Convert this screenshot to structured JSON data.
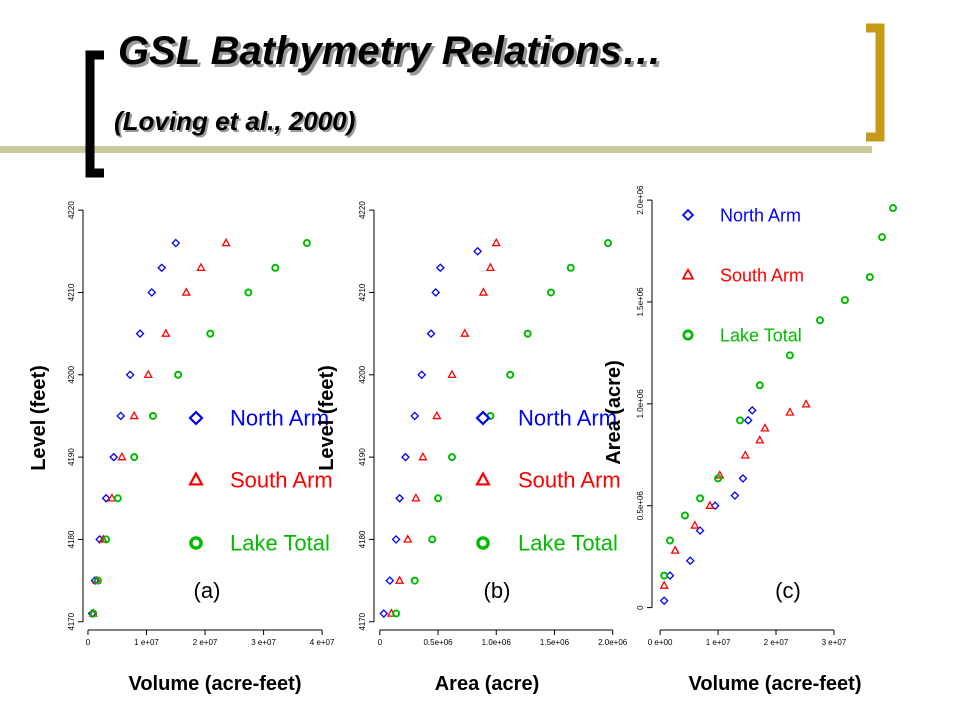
{
  "header": {
    "title": "GSL Bathymetry Relations…",
    "subtitle": "(Loving et al., 2000)"
  },
  "chart_data": [
    {
      "type": "scatter",
      "panel_label": "(a)",
      "x_label": "Volume (acre-feet)",
      "y_label": "Level (feet)",
      "xlim": [
        -850000,
        42200000
      ],
      "ylim": [
        4169,
        4220.5
      ],
      "xticks": [
        0,
        {
          "value": 10000000,
          "label": "1 e+07"
        },
        {
          "value": 20000000,
          "label": "2 e+07"
        },
        {
          "value": 30000000,
          "label": "3 e+07"
        },
        {
          "value": 40000000,
          "label": "4 e+07"
        }
      ],
      "yticks": [
        4170,
        4180,
        4190,
        4200,
        4210,
        4220
      ],
      "series": [
        {
          "name": "North Arm",
          "color": "#0000ff",
          "marker": "diamond",
          "x": [
            700000,
            1200000,
            2000000,
            3100000,
            4400000,
            5600000,
            7200000,
            8900000,
            10900000,
            12600000,
            15000000
          ],
          "values": [
            4171,
            4175,
            4180,
            4185,
            4190,
            4195,
            4200,
            4205,
            4210,
            4213,
            4216
          ]
        },
        {
          "name": "South Arm",
          "color": "#ff0000",
          "marker": "triangle",
          "x": [
            900000,
            1500000,
            2600000,
            4100000,
            5800000,
            7900000,
            10300000,
            13300000,
            16800000,
            19300000,
            23600000
          ],
          "values": [
            4171,
            4175,
            4180,
            4185,
            4190,
            4195,
            4200,
            4205,
            4210,
            4213,
            4216
          ]
        },
        {
          "name": "Lake Total",
          "color": "#00bb00",
          "marker": "circle",
          "x": [
            900000,
            1700000,
            3100000,
            5100000,
            7900000,
            11100000,
            15400000,
            20900000,
            27400000,
            32000000,
            37400000
          ],
          "values": [
            4171,
            4175,
            4180,
            4185,
            4190,
            4195,
            4200,
            4205,
            4210,
            4213,
            4216
          ]
        }
      ]
    },
    {
      "type": "scatter",
      "panel_label": "(b)",
      "x_label": "Area (acre)",
      "y_label": "Level (feet)",
      "xlim": [
        -50000,
        2080000
      ],
      "ylim": [
        4169,
        4220.5
      ],
      "xticks": [
        0,
        {
          "value": 500000,
          "label": "0.5e+06"
        },
        {
          "value": 1000000,
          "label": "1.0e+06"
        },
        {
          "value": 1500000,
          "label": "1.5e+06"
        },
        {
          "value": 2000000,
          "label": "2.0e+06"
        }
      ],
      "yticks": [
        4170,
        4180,
        4190,
        4200,
        4210,
        4220
      ],
      "series": [
        {
          "name": "North Arm",
          "color": "#0000ff",
          "marker": "diamond",
          "x": [
            34000,
            86000,
            140000,
            170000,
            220000,
            300000,
            360000,
            440000,
            480000,
            520000,
            840000
          ],
          "values": [
            4171,
            4175,
            4180,
            4185,
            4190,
            4195,
            4200,
            4205,
            4210,
            4213,
            4215
          ]
        },
        {
          "name": "South Arm",
          "color": "#ff0000",
          "marker": "triangle",
          "x": [
            100000,
            170000,
            240000,
            310000,
            370000,
            490000,
            620000,
            730000,
            890000,
            950000,
            1000000
          ],
          "values": [
            4171,
            4175,
            4180,
            4185,
            4190,
            4195,
            4200,
            4205,
            4210,
            4213,
            4216
          ]
        },
        {
          "name": "Lake Total",
          "color": "#00bb00",
          "marker": "circle",
          "x": [
            140000,
            300000,
            450000,
            500000,
            620000,
            950000,
            1120000,
            1270000,
            1470000,
            1640000,
            1960000
          ],
          "values": [
            4171,
            4175,
            4180,
            4185,
            4190,
            4195,
            4200,
            4205,
            4210,
            4213,
            4216
          ]
        }
      ]
    },
    {
      "type": "scatter",
      "panel_label": "(c)",
      "x_label": "Volume (acre-feet)",
      "y_label": "Area (acre)",
      "xlim": [
        -1400000,
        41400000
      ],
      "ylim": [
        -110000,
        2025000
      ],
      "xticks": [
        {
          "value": 0,
          "label": "0 e+00"
        },
        {
          "value": 10000000,
          "label": "1 e+07"
        },
        {
          "value": 20000000,
          "label": "2 e+07"
        },
        {
          "value": 30000000,
          "label": "3 e+07"
        }
      ],
      "yticks": [
        0,
        {
          "value": 500000,
          "label": "0.5e+06"
        },
        {
          "value": 1000000,
          "label": "1.0e+06"
        },
        {
          "value": 1500000,
          "label": "1.5e+06"
        },
        {
          "value": 2000000,
          "label": "2.0e+06"
        }
      ],
      "series": [
        {
          "name": "North Arm",
          "color": "#0000ff",
          "marker": "diamond",
          "x": [
            700000,
            1700000,
            5200000,
            6900000,
            9500000,
            12900000,
            14300000,
            15200000,
            15900000
          ],
          "values": [
            34000,
            157000,
            230000,
            378000,
            500000,
            550000,
            634000,
            919000,
            968000
          ]
        },
        {
          "name": "South Arm",
          "color": "#ff0000",
          "marker": "triangle",
          "x": [
            700000,
            2600000,
            6000000,
            8600000,
            10300000,
            14700000,
            17200000,
            18100000,
            22400000,
            25200000
          ],
          "values": [
            108000,
            280000,
            403000,
            500000,
            649000,
            747000,
            821000,
            880000,
            958000,
            998000
          ]
        },
        {
          "name": "Lake Total",
          "color": "#00bb00",
          "marker": "circle",
          "x": [
            700000,
            1700000,
            4300000,
            6900000,
            10000000,
            13800000,
            17200000,
            22400000,
            27600000,
            31900000,
            36200000,
            38300000,
            40200000
          ],
          "values": [
            157000,
            329000,
            452000,
            536000,
            634000,
            919000,
            1091000,
            1238000,
            1410000,
            1509000,
            1622000,
            1818000,
            1961000
          ]
        }
      ]
    }
  ]
}
